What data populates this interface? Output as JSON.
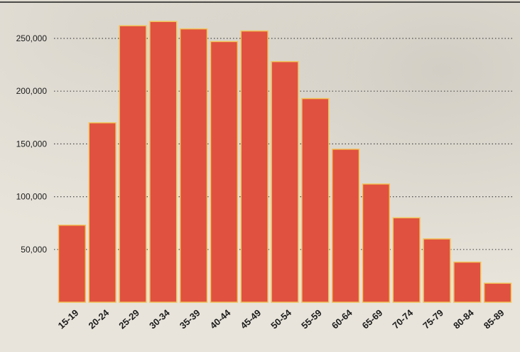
{
  "chart_data": {
    "type": "bar",
    "title": "",
    "xlabel": "",
    "ylabel": "",
    "categories": [
      "15-19",
      "20-24",
      "25-29",
      "30-34",
      "35-39",
      "40-44",
      "45-49",
      "50-54",
      "55-59",
      "60-64",
      "65-69",
      "70-74",
      "75-79",
      "80-84",
      "85-89"
    ],
    "values": [
      73000,
      170000,
      262000,
      266000,
      259000,
      247000,
      257000,
      228000,
      193000,
      145000,
      112000,
      80000,
      60000,
      38000,
      18000
    ],
    "yticks": [
      {
        "value": 50000,
        "label": "50,000"
      },
      {
        "value": 100000,
        "label": "100,000"
      },
      {
        "value": 150000,
        "label": "150,000"
      },
      {
        "value": 200000,
        "label": "200,000"
      },
      {
        "value": 250000,
        "label": "250,000"
      }
    ],
    "ylim": [
      0,
      283000
    ],
    "grid": "dotted horizontal gridlines",
    "colors": {
      "bar": "#e0513f",
      "bar_edge": "#f2c35a",
      "grid": "#4a4a4a",
      "text": "#1c1c1c"
    }
  }
}
